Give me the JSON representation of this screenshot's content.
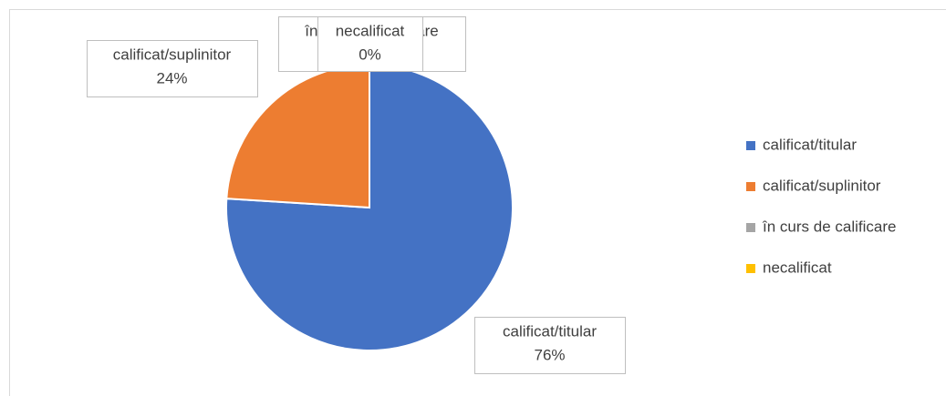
{
  "chart_data": {
    "type": "pie",
    "categories": [
      "calificat/titular",
      "calificat/suplinitor",
      "în curs de calificare",
      "necalificat"
    ],
    "values": [
      76,
      24,
      0,
      0
    ],
    "value_labels": [
      "76%",
      "24%",
      "0%",
      "0%"
    ],
    "colors": [
      "#4472c4",
      "#ed7d31",
      "#a5a5a5",
      "#ffc000"
    ],
    "legend": "right"
  }
}
